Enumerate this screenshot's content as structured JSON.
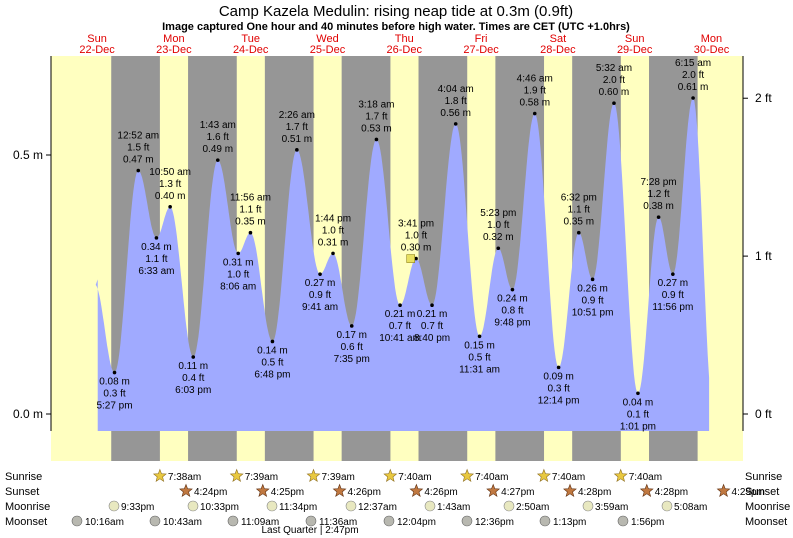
{
  "title": "Camp Kazela Medulin: rising  neap tide at 0.3m (0.9ft)",
  "subtitle": "Image captured One hour and 40 minutes before high water. Times are CET (UTC +1.0hrs)",
  "colors": {
    "day": "#ffffc0",
    "night": "#969696",
    "water": "#a0aaff",
    "day_label": "#e00000",
    "sun": "#e8c840",
    "sunset": "#c07840",
    "moon": "#e8e8c0",
    "moonset": "#b8b8b0"
  },
  "days": [
    {
      "dow": "Sun",
      "date": "22-Dec"
    },
    {
      "dow": "Mon",
      "date": "23-Dec"
    },
    {
      "dow": "Tue",
      "date": "24-Dec"
    },
    {
      "dow": "Wed",
      "date": "25-Dec"
    },
    {
      "dow": "Thu",
      "date": "26-Dec"
    },
    {
      "dow": "Fri",
      "date": "27-Dec"
    },
    {
      "dow": "Sat",
      "date": "28-Dec"
    },
    {
      "dow": "Sun",
      "date": "29-Dec"
    },
    {
      "dow": "Mon",
      "date": "30-Dec"
    }
  ],
  "axis": {
    "left_ticks": [
      {
        "v": 0.0,
        "label": "0.0 m"
      },
      {
        "v": 0.5,
        "label": "0.5 m"
      }
    ],
    "right_ticks": [
      {
        "v": 0.0,
        "label": "0 ft"
      },
      {
        "v": 0.3048,
        "label": "1 ft"
      },
      {
        "v": 0.6096,
        "label": "2 ft"
      }
    ]
  },
  "chart_data": {
    "type": "area",
    "title": "Camp Kazela Medulin: rising  neap tide at 0.3m (0.9ft)",
    "ylabel": "m",
    "ylim": [
      -0.03,
      0.67
    ],
    "x_units": "hours from 22-Dec 00:00 CET",
    "current_height_m": 0.3,
    "series": [
      {
        "values": [
          {
            "x": 17.45,
            "y": 0.08,
            "time": "5:27 pm",
            "ft": "0.3 ft",
            "m": "0.08 m",
            "type": "low"
          },
          {
            "x": 24.87,
            "y": 0.47,
            "time": "12:52 am",
            "ft": "1.5 ft",
            "m": "0.47 m",
            "type": "high"
          },
          {
            "x": 30.55,
            "y": 0.34,
            "time": "6:33 am",
            "ft": "1.1 ft",
            "m": "0.34 m",
            "type": "low"
          },
          {
            "x": 34.83,
            "y": 0.4,
            "time": "10:50 am",
            "ft": "1.3 ft",
            "m": "0.40 m",
            "type": "high"
          },
          {
            "x": 42.05,
            "y": 0.11,
            "time": "6:03 pm",
            "ft": "0.4 ft",
            "m": "0.11 m",
            "type": "low"
          },
          {
            "x": 49.72,
            "y": 0.49,
            "time": "1:43 am",
            "ft": "1.6 ft",
            "m": "0.49 m",
            "type": "high"
          },
          {
            "x": 56.1,
            "y": 0.31,
            "time": "8:06 am",
            "ft": "1.0 ft",
            "m": "0.31 m",
            "type": "low"
          },
          {
            "x": 59.93,
            "y": 0.35,
            "time": "11:56 am",
            "ft": "1.1 ft",
            "m": "0.35 m",
            "type": "high"
          },
          {
            "x": 66.8,
            "y": 0.14,
            "time": "6:48 pm",
            "ft": "0.5 ft",
            "m": "0.14 m",
            "type": "low"
          },
          {
            "x": 74.43,
            "y": 0.51,
            "time": "2:26 am",
            "ft": "1.7 ft",
            "m": "0.51 m",
            "type": "high"
          },
          {
            "x": 81.68,
            "y": 0.27,
            "time": "9:41 am",
            "ft": "0.9 ft",
            "m": "0.27 m",
            "type": "low"
          },
          {
            "x": 85.73,
            "y": 0.31,
            "time": "1:44 pm",
            "ft": "1.0 ft",
            "m": "0.31 m",
            "type": "high"
          },
          {
            "x": 91.58,
            "y": 0.17,
            "time": "7:35 pm",
            "ft": "0.6 ft",
            "m": "0.17 m",
            "type": "low"
          },
          {
            "x": 99.3,
            "y": 0.53,
            "time": "3:18 am",
            "ft": "1.7 ft",
            "m": "0.53 m",
            "type": "high"
          },
          {
            "x": 106.68,
            "y": 0.21,
            "time": "10:41 am",
            "ft": "0.7 ft",
            "m": "0.21 m",
            "type": "low"
          },
          {
            "x": 111.68,
            "y": 0.3,
            "time": "3:41 pm",
            "ft": "1.0 ft",
            "m": "0.30 m",
            "type": "high"
          },
          {
            "x": 116.67,
            "y": 0.21,
            "time": "8:40 pm",
            "ft": "0.7 ft",
            "m": "0.21 m",
            "type": "low"
          },
          {
            "x": 124.07,
            "y": 0.56,
            "time": "4:04 am",
            "ft": "1.8 ft",
            "m": "0.56 m",
            "type": "high"
          },
          {
            "x": 131.52,
            "y": 0.15,
            "time": "11:31 am",
            "ft": "0.5 ft",
            "m": "0.15 m",
            "type": "low"
          },
          {
            "x": 137.38,
            "y": 0.32,
            "time": "5:23 pm",
            "ft": "1.0 ft",
            "m": "0.32 m",
            "type": "high"
          },
          {
            "x": 141.8,
            "y": 0.24,
            "time": "9:48 pm",
            "ft": "0.8 ft",
            "m": "0.24 m",
            "type": "low"
          },
          {
            "x": 148.77,
            "y": 0.58,
            "time": "4:46 am",
            "ft": "1.9 ft",
            "m": "0.58 m",
            "type": "high"
          },
          {
            "x": 156.23,
            "y": 0.09,
            "time": "12:14 pm",
            "ft": "0.3 ft",
            "m": "0.09 m",
            "type": "low"
          },
          {
            "x": 162.53,
            "y": 0.35,
            "time": "6:32 pm",
            "ft": "1.1 ft",
            "m": "0.35 m",
            "type": "high"
          },
          {
            "x": 166.85,
            "y": 0.26,
            "time": "10:51 pm",
            "ft": "0.9 ft",
            "m": "0.26 m",
            "type": "low"
          },
          {
            "x": 173.53,
            "y": 0.6,
            "time": "5:32 am",
            "ft": "2.0 ft",
            "m": "0.60 m",
            "type": "high"
          },
          {
            "x": 181.02,
            "y": 0.04,
            "time": "1:01 pm",
            "ft": "0.1 ft",
            "m": "0.04 m",
            "type": "low"
          },
          {
            "x": 187.47,
            "y": 0.38,
            "time": "7:28 pm",
            "ft": "1.2 ft",
            "m": "0.38 m",
            "type": "high"
          },
          {
            "x": 191.93,
            "y": 0.27,
            "time": "11:56 pm",
            "ft": "0.9 ft",
            "m": "0.27 m",
            "type": "low"
          },
          {
            "x": 198.25,
            "y": 0.61,
            "time": "6:15 am",
            "ft": "2.0 ft",
            "m": "0.61 m",
            "type": "high"
          }
        ]
      }
    ]
  },
  "nights": [
    {
      "start": 16.42,
      "end": 31.63
    },
    {
      "start": 40.43,
      "end": 55.65
    },
    {
      "start": 64.43,
      "end": 79.65
    },
    {
      "start": 88.43,
      "end": 103.67
    },
    {
      "start": 112.45,
      "end": 127.67
    },
    {
      "start": 136.47,
      "end": 151.67
    },
    {
      "start": 160.47,
      "end": 175.67
    },
    {
      "start": 184.48,
      "end": 199.67
    }
  ],
  "rows": {
    "sunrise_label": "Sunrise",
    "sunset_label": "Sunset",
    "moonrise_label": "Moonrise",
    "moonset_label": "Moonset",
    "sunrise": [
      "7:38am",
      "7:39am",
      "7:39am",
      "7:40am",
      "7:40am",
      "7:40am",
      "7:40am"
    ],
    "sunset": [
      "4:24pm",
      "4:25pm",
      "4:26pm",
      "4:26pm",
      "4:27pm",
      "4:28pm",
      "4:28pm",
      "4:29pm"
    ],
    "moonrise": [
      "9:33pm",
      "10:33pm",
      "11:34pm",
      "12:37am",
      "1:43am",
      "2:50am",
      "3:59am",
      "5:08am"
    ],
    "moonset": [
      "10:16am",
      "10:43am",
      "11:09am",
      "11:36am",
      "12:04pm",
      "12:36pm",
      "1:13pm",
      "1:56pm"
    ],
    "moon_phase": "Last Quarter | 2:47pm"
  }
}
